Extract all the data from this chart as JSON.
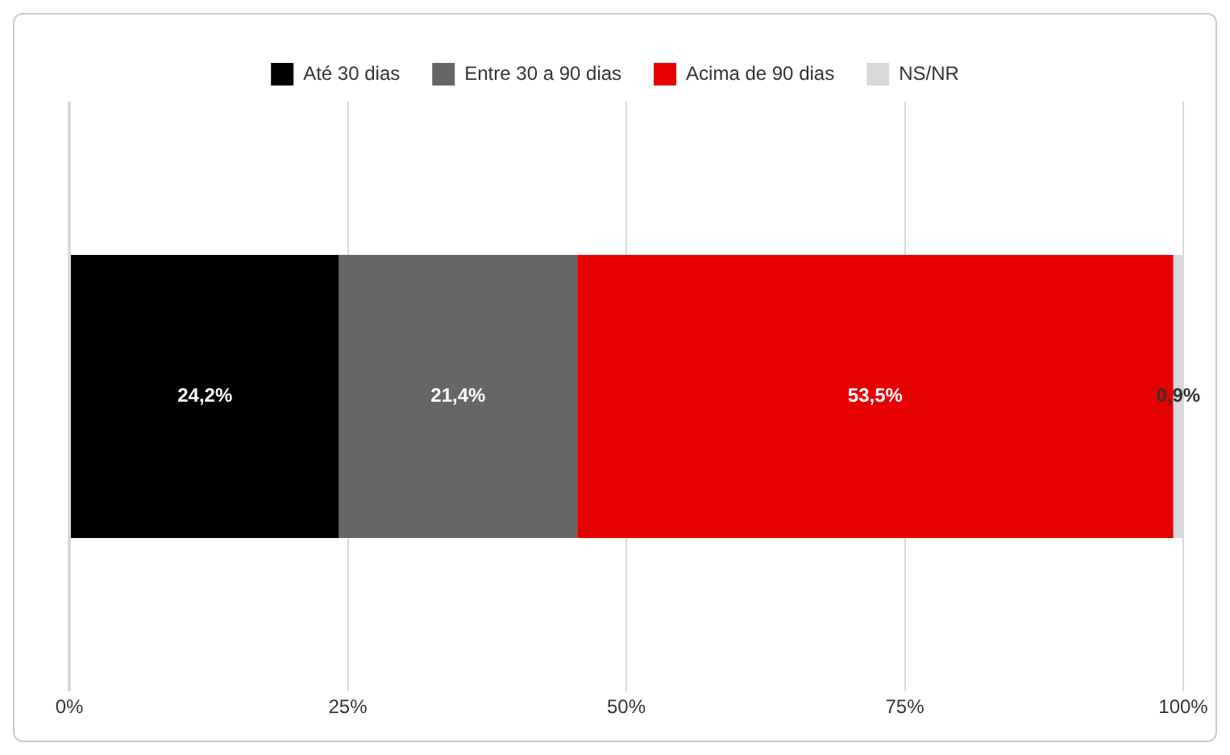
{
  "chart_data": {
    "type": "bar",
    "orientation": "horizontal",
    "stacked": true,
    "categories": [
      null
    ],
    "series": [
      {
        "name": "Até 30 dias",
        "color": "#000000",
        "values": [
          24.2
        ],
        "value_labels": [
          "24,2%"
        ]
      },
      {
        "name": "Entre 30 a 90 dias",
        "color": "#666666",
        "values": [
          21.4
        ],
        "value_labels": [
          "21,4%"
        ]
      },
      {
        "name": "Acima de 90 dias",
        "color": "#e60000",
        "values": [
          53.5
        ],
        "value_labels": [
          "53,5%"
        ]
      },
      {
        "name": "NS/NR",
        "color": "#d9d9d9",
        "values": [
          0.9
        ],
        "value_labels": [
          "0,9%"
        ]
      }
    ],
    "xlim": [
      0,
      100
    ],
    "xticks": [
      {
        "value": 0,
        "label": "0%"
      },
      {
        "value": 25,
        "label": "25%"
      },
      {
        "value": 50,
        "label": "50%"
      },
      {
        "value": 75,
        "label": "75%"
      },
      {
        "value": 100,
        "label": "100%"
      }
    ],
    "grid": "x",
    "legend": "top"
  }
}
